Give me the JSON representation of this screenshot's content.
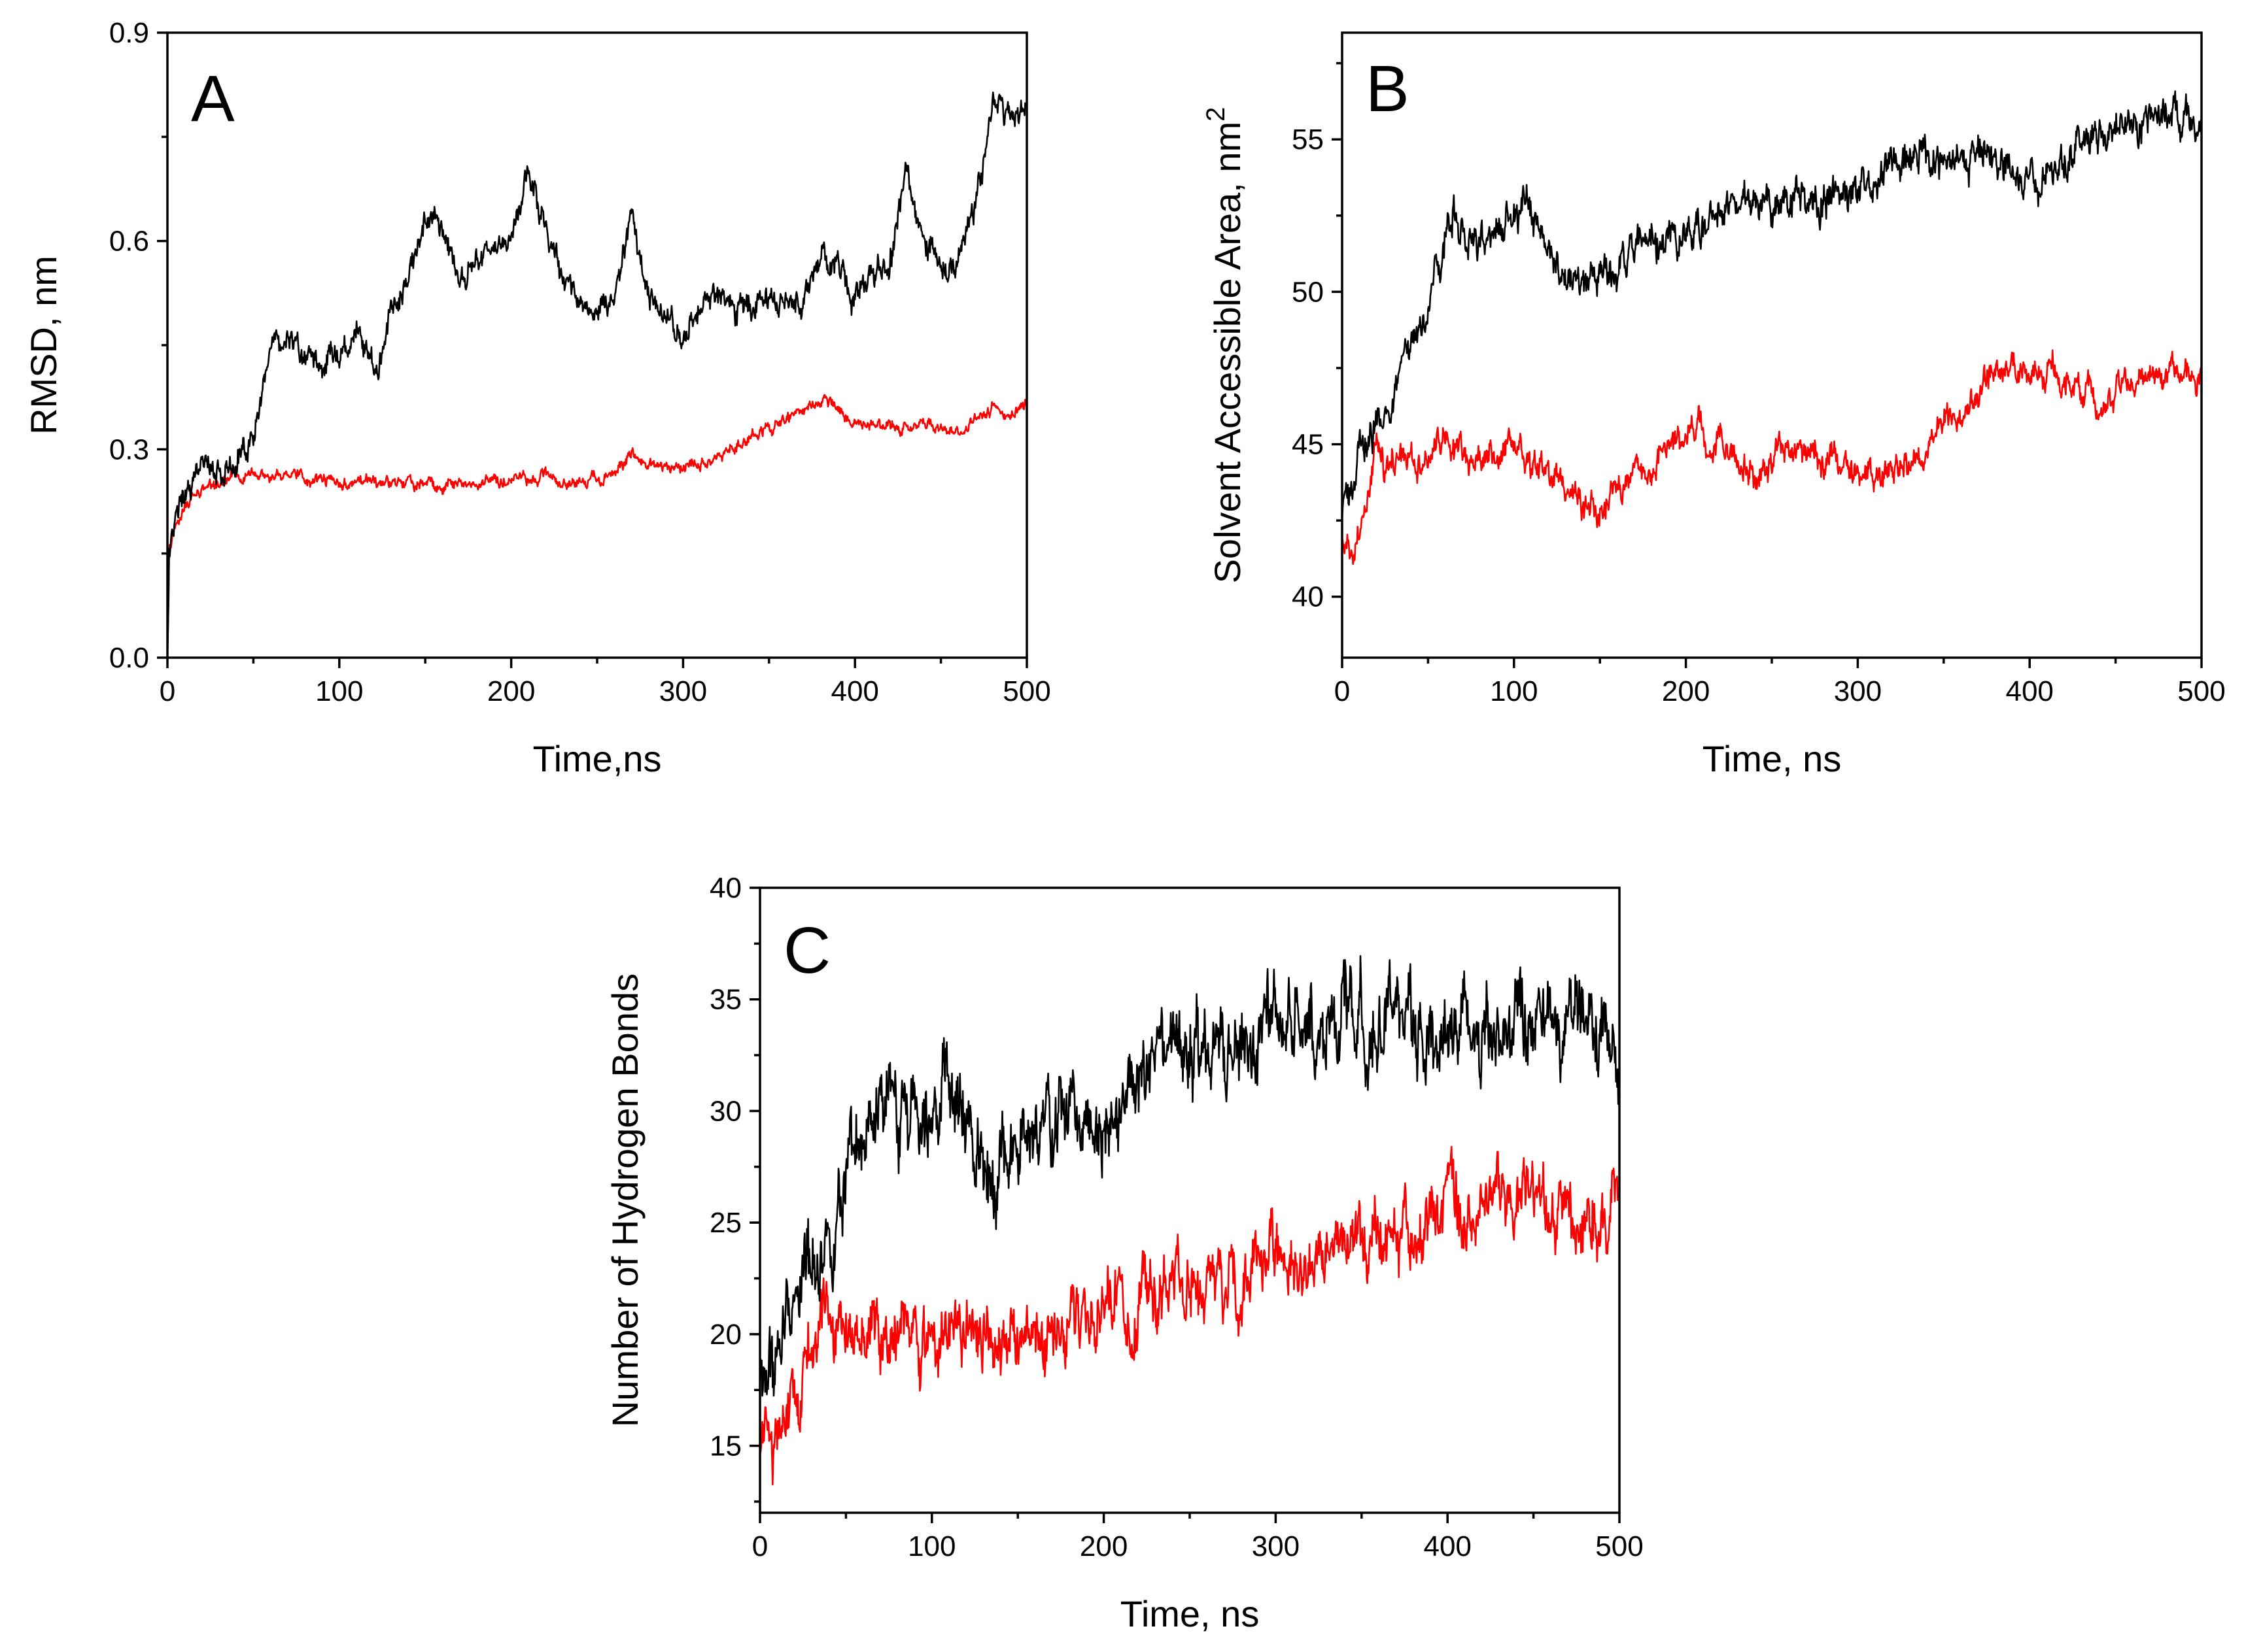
{
  "colors": {
    "black_series": "#000000",
    "red_series": "#ff0000"
  },
  "chart_data": [
    {
      "type": "line",
      "panel_label": "A",
      "xlabel": "Time,ns",
      "ylabel": "RMSD, nm",
      "xlim": [
        0,
        500
      ],
      "ylim": [
        0,
        0.9
      ],
      "x_ticks": [
        0,
        100,
        200,
        300,
        400,
        500
      ],
      "x_tick_labels": [
        "0",
        "100",
        "200",
        "300",
        "400",
        "500"
      ],
      "y_ticks": [
        0.0,
        0.3,
        0.6,
        0.9
      ],
      "y_tick_labels": [
        "0.0",
        "0.3",
        "0.6",
        "0.9"
      ],
      "y_minor_ticks": [
        0.15,
        0.45,
        0.75
      ],
      "x_minor_ticks": [
        50,
        150,
        250,
        350,
        450
      ],
      "series": [
        {
          "name": "black",
          "color": "#000000",
          "noise": 0.018,
          "x": [
            0,
            1,
            5,
            10,
            20,
            30,
            40,
            50,
            55,
            60,
            65,
            70,
            80,
            90,
            100,
            110,
            120,
            130,
            140,
            150,
            160,
            170,
            180,
            190,
            200,
            210,
            220,
            230,
            240,
            250,
            260,
            270,
            280,
            290,
            300,
            310,
            320,
            330,
            340,
            350,
            360,
            370,
            380,
            390,
            400,
            410,
            420,
            430,
            440,
            450,
            460,
            470,
            480,
            490,
            500
          ],
          "y": [
            0.0,
            0.15,
            0.2,
            0.25,
            0.27,
            0.27,
            0.29,
            0.32,
            0.38,
            0.45,
            0.44,
            0.46,
            0.44,
            0.45,
            0.43,
            0.46,
            0.41,
            0.5,
            0.55,
            0.63,
            0.6,
            0.55,
            0.58,
            0.59,
            0.6,
            0.7,
            0.62,
            0.55,
            0.52,
            0.49,
            0.51,
            0.64,
            0.52,
            0.48,
            0.46,
            0.5,
            0.52,
            0.5,
            0.51,
            0.5,
            0.53,
            0.5,
            0.58,
            0.56,
            0.52,
            0.55,
            0.57,
            0.7,
            0.6,
            0.58,
            0.56,
            0.65,
            0.8,
            0.79,
            0.8
          ]
        },
        {
          "name": "red",
          "color": "#ff0000",
          "noise": 0.008,
          "x": [
            0,
            1,
            5,
            10,
            20,
            30,
            40,
            50,
            60,
            70,
            80,
            100,
            120,
            150,
            180,
            200,
            220,
            240,
            260,
            270,
            280,
            300,
            320,
            340,
            360,
            380,
            400,
            420,
            440,
            460,
            480,
            490,
            500
          ],
          "y": [
            0.0,
            0.15,
            0.19,
            0.22,
            0.24,
            0.25,
            0.26,
            0.27,
            0.26,
            0.27,
            0.26,
            0.25,
            0.25,
            0.25,
            0.25,
            0.26,
            0.26,
            0.25,
            0.27,
            0.29,
            0.28,
            0.27,
            0.29,
            0.32,
            0.34,
            0.37,
            0.34,
            0.33,
            0.33,
            0.32,
            0.36,
            0.35,
            0.37
          ]
        }
      ]
    },
    {
      "type": "line",
      "panel_label": "B",
      "xlabel": "Time, ns",
      "ylabel": "Solvent Accessible Area, nm",
      "ylabel_superscript": "2",
      "xlim": [
        0,
        500
      ],
      "ylim": [
        38,
        58.5
      ],
      "x_ticks": [
        0,
        100,
        200,
        300,
        400,
        500
      ],
      "x_tick_labels": [
        "0",
        "100",
        "200",
        "300",
        "400",
        "500"
      ],
      "y_ticks": [
        40,
        45,
        50,
        55
      ],
      "y_tick_labels": [
        "40",
        "45",
        "50",
        "55"
      ],
      "y_minor_ticks": [
        42.5,
        47.5,
        52.5,
        57.5
      ],
      "x_minor_ticks": [
        50,
        150,
        250,
        350,
        450
      ],
      "series": [
        {
          "name": "black",
          "color": "#000000",
          "noise": 0.55,
          "x": [
            0,
            5,
            10,
            20,
            30,
            40,
            50,
            60,
            65,
            70,
            80,
            90,
            100,
            110,
            120,
            130,
            140,
            150,
            160,
            180,
            200,
            220,
            240,
            260,
            280,
            300,
            320,
            340,
            360,
            380,
            400,
            420,
            440,
            460,
            480,
            500
          ],
          "y": [
            42.5,
            43.5,
            44.5,
            45.5,
            46.5,
            48,
            49.5,
            51.5,
            53,
            52,
            51.5,
            52,
            52.5,
            52.5,
            51,
            50.5,
            50,
            50.5,
            51,
            51.5,
            52,
            52.5,
            53,
            53,
            53,
            53.5,
            54,
            54.5,
            54.5,
            54.5,
            53.5,
            54.5,
            55,
            55.5,
            55.8,
            55.5
          ]
        },
        {
          "name": "red",
          "color": "#ff0000",
          "noise": 0.45,
          "x": [
            0,
            5,
            10,
            15,
            20,
            25,
            30,
            40,
            60,
            80,
            100,
            110,
            120,
            140,
            150,
            160,
            180,
            200,
            220,
            240,
            260,
            280,
            300,
            320,
            340,
            360,
            380,
            400,
            420,
            440,
            460,
            480,
            500
          ],
          "y": [
            41.5,
            41.5,
            41.5,
            43,
            45,
            44,
            44.5,
            44.5,
            45,
            44.5,
            45,
            44.5,
            44,
            43,
            42.8,
            43.5,
            44.5,
            45.5,
            45,
            44,
            45,
            44.5,
            44,
            44,
            45,
            46,
            47.5,
            47.5,
            47,
            46.5,
            47,
            47.5,
            47.3
          ]
        }
      ]
    },
    {
      "type": "line",
      "panel_label": "C",
      "xlabel": "Time, ns",
      "ylabel": "Number of Hydrogen Bonds",
      "xlim": [
        0,
        500
      ],
      "ylim": [
        12,
        40
      ],
      "x_ticks": [
        0,
        100,
        200,
        300,
        400,
        500
      ],
      "x_tick_labels": [
        "0",
        "100",
        "200",
        "300",
        "400",
        "500"
      ],
      "y_ticks": [
        15,
        20,
        25,
        30,
        35,
        40
      ],
      "y_tick_labels": [
        "15",
        "20",
        "25",
        "30",
        "35",
        "40"
      ],
      "y_minor_ticks": [
        12.5,
        17.5,
        22.5,
        27.5,
        32.5,
        37.5
      ],
      "x_minor_ticks": [
        50,
        150,
        250,
        350,
        450
      ],
      "series": [
        {
          "name": "black",
          "color": "#000000",
          "noise": 1.7,
          "x": [
            0,
            10,
            20,
            30,
            40,
            50,
            60,
            70,
            80,
            90,
            100,
            110,
            120,
            130,
            140,
            150,
            160,
            180,
            200,
            220,
            240,
            260,
            280,
            300,
            320,
            340,
            360,
            380,
            400,
            420,
            440,
            460,
            480,
            500
          ],
          "y": [
            17.5,
            19,
            22,
            23.5,
            24.5,
            26,
            28,
            29.5,
            30,
            30.5,
            31.5,
            30.5,
            29,
            28,
            28,
            28,
            28.5,
            30,
            30,
            31,
            32.5,
            32,
            32.5,
            33.5,
            34,
            34,
            34,
            34,
            33.5,
            34,
            33.5,
            33.5,
            34,
            33
          ]
        },
        {
          "name": "red",
          "color": "#ff0000",
          "noise": 1.4,
          "x": [
            0,
            10,
            20,
            30,
            40,
            50,
            60,
            80,
            100,
            120,
            140,
            160,
            180,
            200,
            220,
            240,
            260,
            280,
            300,
            320,
            340,
            360,
            380,
            400,
            420,
            440,
            460,
            480,
            500
          ],
          "y": [
            15,
            15.5,
            17.5,
            19.5,
            20.5,
            21,
            20.5,
            20.5,
            20,
            19.5,
            19.5,
            20,
            20.5,
            21,
            21.5,
            22,
            22.5,
            22.5,
            23,
            23,
            23.5,
            24.5,
            25,
            26,
            26,
            26,
            25.5,
            25.5,
            25
          ]
        }
      ]
    }
  ]
}
